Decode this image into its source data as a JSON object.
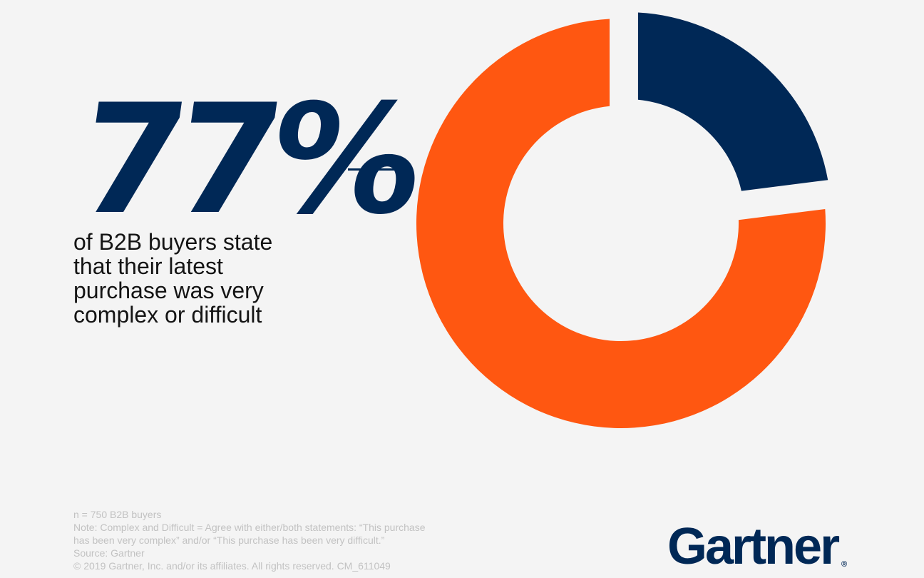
{
  "headline": {
    "stat": "77%",
    "description_lines": [
      "of B2B buyers state",
      "that their latest",
      "purchase was very",
      "complex or difficult"
    ]
  },
  "footnotes": [
    "n = 750 B2B buyers",
    "Note: Complex and Difficult = Agree with either/both statements: “This purchase",
    "has been very complex” and/or “This purchase has been very difficult.”",
    "Source: Gartner",
    "© 2019 Gartner, Inc. and/or its affiliates. All rights reserved. CM_611049"
  ],
  "logo": {
    "text": "Gartner",
    "registered_mark": "®"
  },
  "colors": {
    "navy": "#002856",
    "orange": "#ff5711",
    "background": "#f4f4f4"
  },
  "chart_data": {
    "type": "pie",
    "style": "donut",
    "slices": [
      {
        "value": 77,
        "color": "#ff5711"
      },
      {
        "value": 23,
        "color": "#002856"
      }
    ],
    "exploded_slice_index": 1
  }
}
